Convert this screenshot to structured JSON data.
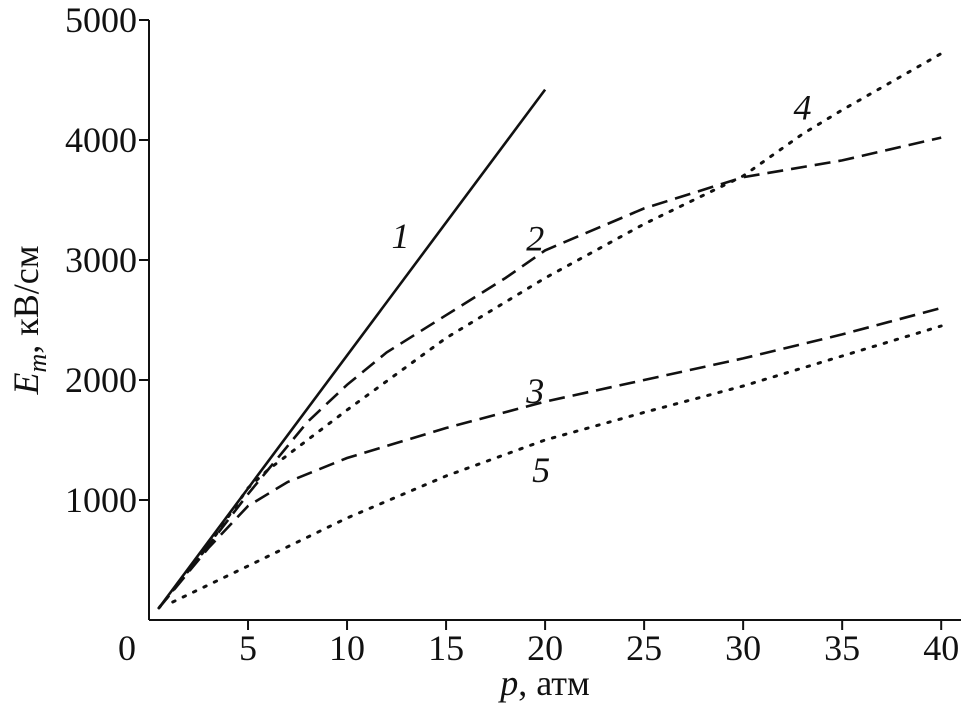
{
  "chart_data": {
    "type": "line",
    "xlabel": {
      "symbol": "p",
      "text": ", атм"
    },
    "ylabel": {
      "symbol": "E",
      "subscript": "m",
      "text": ", кВ/см"
    },
    "xlim": [
      0,
      41
    ],
    "ylim": [
      0,
      5000
    ],
    "xticks": [
      0,
      5,
      10,
      15,
      20,
      25,
      30,
      35,
      40
    ],
    "yticks": [
      1000,
      2000,
      3000,
      4000,
      5000
    ],
    "series": [
      {
        "name": "1",
        "color": "#111111",
        "style": "solid",
        "x": [
          0.5,
          20
        ],
        "values": [
          100,
          4420
        ]
      },
      {
        "name": "2",
        "color": "#111111",
        "style": "dashed",
        "x": [
          0.5,
          3,
          5,
          6,
          8,
          10,
          12,
          15,
          18,
          20,
          25,
          30,
          35,
          40
        ],
        "values": [
          100,
          620,
          1050,
          1250,
          1650,
          1960,
          2230,
          2540,
          2850,
          3080,
          3430,
          3690,
          3830,
          4020
        ]
      },
      {
        "name": "3",
        "color": "#111111",
        "style": "dashed",
        "x": [
          0.5,
          3,
          5,
          7,
          10,
          15,
          20,
          25,
          30,
          35,
          40
        ],
        "values": [
          100,
          600,
          950,
          1150,
          1350,
          1600,
          1820,
          2000,
          2180,
          2380,
          2600
        ]
      },
      {
        "name": "4",
        "color": "#111111",
        "style": "dotted",
        "x": [
          0.5,
          3,
          5,
          6,
          8,
          10,
          15,
          20,
          25,
          30,
          33,
          35,
          40
        ],
        "values": [
          100,
          620,
          1100,
          1250,
          1500,
          1750,
          2350,
          2850,
          3300,
          3700,
          4050,
          4250,
          4720
        ]
      },
      {
        "name": "5",
        "color": "#111111",
        "style": "dotted",
        "x": [
          1.2,
          5,
          10,
          15,
          20,
          25,
          30,
          35,
          40
        ],
        "values": [
          150,
          450,
          850,
          1200,
          1500,
          1730,
          1950,
          2200,
          2450
        ]
      }
    ]
  }
}
